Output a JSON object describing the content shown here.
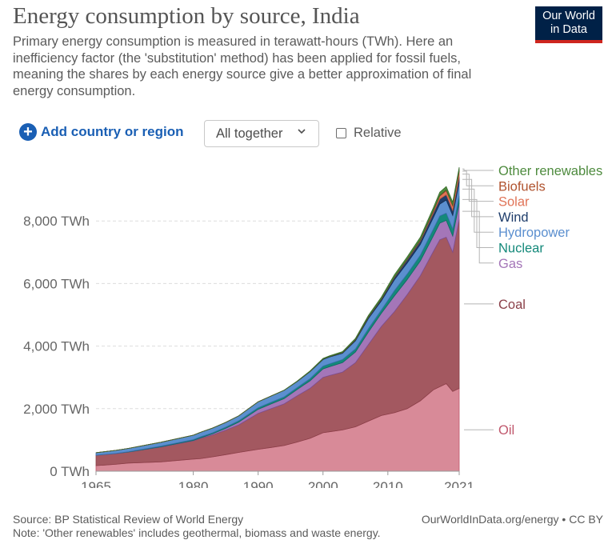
{
  "header": {
    "title": "Energy consumption by source, India",
    "subtitle": "Primary energy consumption is measured in terawatt-hours (TWh). Here an inefficiency factor (the 'substitution' method) has been applied for fossil fuels, meaning the shares by each energy source give a better approximation of final energy consumption.",
    "logo_line1": "Our World",
    "logo_line2": "in Data",
    "logo_colors": {
      "bg": "#002147",
      "bar": "#ce261e"
    }
  },
  "controls": {
    "add_label": "Add country or region",
    "stack_mode": "All together",
    "relative_label": "Relative"
  },
  "chart_data": {
    "type": "area",
    "stacked": true,
    "title": "Energy consumption by source, India",
    "ylabel": "TWh",
    "ylim": [
      0,
      10000
    ],
    "xlim": [
      1965,
      2021
    ],
    "yticks": [
      {
        "value": 0,
        "label": "0 TWh"
      },
      {
        "value": 2000,
        "label": "2,000 TWh"
      },
      {
        "value": 4000,
        "label": "4,000 TWh"
      },
      {
        "value": 6000,
        "label": "6,000 TWh"
      },
      {
        "value": 8000,
        "label": "8,000 TWh"
      }
    ],
    "xticks": [
      {
        "value": 1965,
        "label": "1965"
      },
      {
        "value": 1980,
        "label": "1980"
      },
      {
        "value": 1990,
        "label": "1990"
      },
      {
        "value": 2000,
        "label": "2000"
      },
      {
        "value": 2010,
        "label": "2010"
      },
      {
        "value": 2021,
        "label": "2021"
      }
    ],
    "x": [
      1965,
      1968,
      1970,
      1975,
      1980,
      1981,
      1983,
      1985,
      1987,
      1990,
      1992,
      1994,
      1996,
      1998,
      2000,
      2001,
      2003,
      2005,
      2007,
      2009,
      2011,
      2013,
      2015,
      2017,
      2018,
      2019,
      2020,
      2021
    ],
    "series": [
      {
        "name": "Oil",
        "color": "#d88a98",
        "stroke": "#c0586d",
        "values": [
          180,
          220,
          260,
          300,
          390,
          400,
          460,
          530,
          600,
          700,
          760,
          820,
          930,
          1050,
          1230,
          1260,
          1320,
          1420,
          1600,
          1780,
          1870,
          2000,
          2250,
          2600,
          2700,
          2800,
          2550,
          2650
        ]
      },
      {
        "name": "Coal",
        "color": "#a35860",
        "stroke": "#8a3f48",
        "values": [
          330,
          340,
          350,
          470,
          580,
          640,
          700,
          780,
          880,
          1150,
          1240,
          1330,
          1480,
          1600,
          1770,
          1800,
          1850,
          2050,
          2450,
          2850,
          3230,
          3650,
          4000,
          4420,
          4700,
          4680,
          4450,
          5400
        ]
      },
      {
        "name": "Gas",
        "color": "#a476b8",
        "stroke": "#7d4f94",
        "values": [
          2,
          4,
          5,
          10,
          15,
          20,
          40,
          60,
          90,
          130,
          150,
          170,
          200,
          240,
          270,
          280,
          300,
          340,
          400,
          420,
          500,
          480,
          470,
          500,
          530,
          540,
          520,
          520
        ]
      },
      {
        "name": "Nuclear",
        "color": "#14897a",
        "stroke": "#0b6d61",
        "values": [
          0,
          5,
          10,
          20,
          25,
          30,
          30,
          40,
          45,
          50,
          55,
          55,
          60,
          70,
          90,
          95,
          100,
          100,
          110,
          105,
          170,
          180,
          190,
          220,
          230,
          230,
          230,
          230
        ]
      },
      {
        "name": "Hydropower",
        "color": "#5b8fcf",
        "stroke": "#3c6fb0",
        "values": [
          80,
          95,
          105,
          125,
          140,
          145,
          150,
          150,
          155,
          190,
          200,
          210,
          195,
          220,
          210,
          215,
          200,
          260,
          320,
          290,
          345,
          350,
          340,
          365,
          380,
          420,
          430,
          440
        ]
      },
      {
        "name": "Wind",
        "color": "#1f3d6b",
        "stroke": "#152c4e",
        "values": [
          0,
          0,
          0,
          0,
          0,
          0,
          0,
          0,
          0,
          0,
          0,
          0,
          5,
          10,
          15,
          18,
          20,
          30,
          45,
          55,
          75,
          100,
          105,
          140,
          160,
          170,
          155,
          175
        ]
      },
      {
        "name": "Solar",
        "color": "#e07458",
        "stroke": "#c25a40",
        "values": [
          0,
          0,
          0,
          0,
          0,
          0,
          0,
          0,
          0,
          0,
          0,
          0,
          0,
          0,
          0,
          0,
          0,
          0,
          1,
          2,
          5,
          10,
          20,
          60,
          95,
          130,
          145,
          165
        ]
      },
      {
        "name": "Biofuels",
        "color": "#b0532f",
        "stroke": "#8f3f21",
        "values": [
          0,
          0,
          0,
          0,
          0,
          0,
          0,
          0,
          0,
          0,
          0,
          0,
          0,
          0,
          0,
          0,
          5,
          10,
          10,
          10,
          12,
          15,
          20,
          20,
          22,
          25,
          25,
          25
        ]
      },
      {
        "name": "Other renewables",
        "color": "#4e8b3e",
        "stroke": "#3a6d2d",
        "values": [
          0,
          0,
          0,
          0,
          0,
          0,
          0,
          0,
          0,
          0,
          0,
          5,
          10,
          15,
          20,
          22,
          28,
          35,
          45,
          55,
          70,
          75,
          85,
          95,
          100,
          105,
          100,
          110
        ]
      }
    ],
    "legend_placement": "right"
  },
  "footer": {
    "source": "Source: BP Statistical Review of World Energy",
    "note": "Note: 'Other renewables' includes geothermal, biomass and waste energy.",
    "url_license": "OurWorldInData.org/energy • CC BY"
  }
}
